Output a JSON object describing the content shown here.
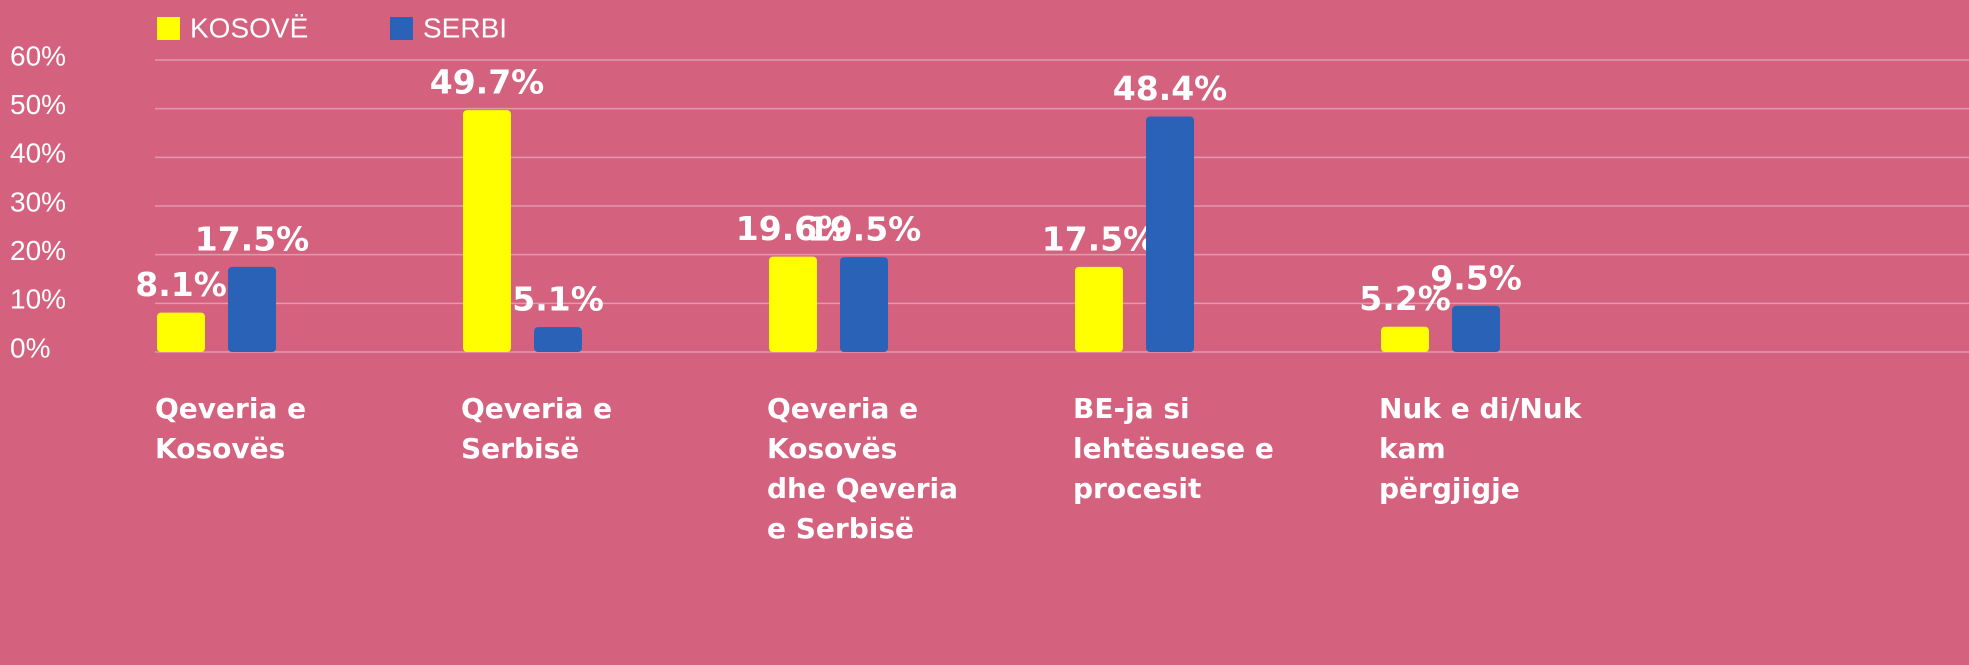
{
  "chart_data": {
    "type": "bar",
    "categories": [
      [
        "Qeveria e",
        "Kosovës"
      ],
      [
        "Qeveria e",
        "Serbisë"
      ],
      [
        "Qeveria e",
        "Kosovës",
        "dhe Qeveria",
        "e Serbisë"
      ],
      [
        "BE-ja si",
        "lehtësuese e",
        "procesit"
      ],
      [
        "Nuk e di/Nuk",
        "kam",
        "përgjigje"
      ]
    ],
    "series": [
      {
        "name": "KOSOVË",
        "color": "#ffff00",
        "values": [
          8.1,
          49.7,
          19.6,
          17.5,
          5.2
        ],
        "value_labels": [
          "8.1%",
          "49.7%",
          "19.6%",
          "17.5%",
          "5.2%"
        ]
      },
      {
        "name": "SERBI",
        "color": "#2a62b8",
        "values": [
          17.5,
          5.1,
          19.5,
          48.4,
          9.5
        ],
        "value_labels": [
          "17.5%",
          "5.1%",
          "19.5%",
          "48.4%",
          "9.5%"
        ]
      }
    ],
    "ylim": [
      0,
      60
    ],
    "yticks": [
      {
        "value": 0,
        "label": "0%"
      },
      {
        "value": 10,
        "label": "10%"
      },
      {
        "value": 20,
        "label": "20%"
      },
      {
        "value": 30,
        "label": "30%"
      },
      {
        "value": 40,
        "label": "40%"
      },
      {
        "value": 50,
        "label": "50%"
      },
      {
        "value": 60,
        "label": "60%"
      }
    ],
    "grid": true
  }
}
